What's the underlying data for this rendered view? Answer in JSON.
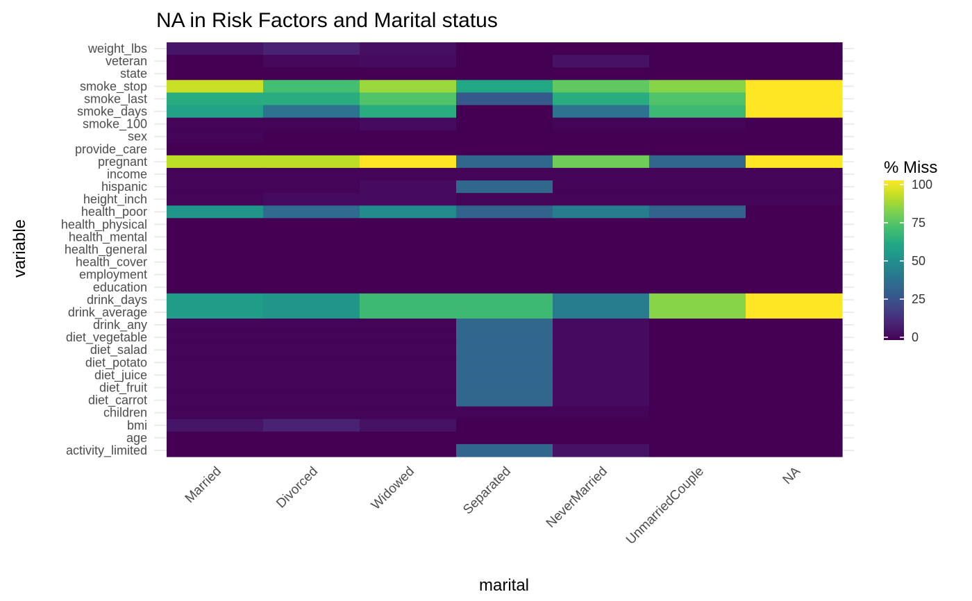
{
  "chart_data": {
    "type": "heatmap",
    "title": "NA in Risk Factors and Marital status",
    "xlabel": "marital",
    "ylabel": "variable",
    "legend_title": "% Miss",
    "legend_ticks": [
      0,
      25,
      50,
      75,
      100
    ],
    "legend_placement": "right",
    "color_scale": "viridis",
    "color_range": [
      0,
      100
    ],
    "x_categories": [
      "Married",
      "Divorced",
      "Widowed",
      "Separated",
      "NeverMarried",
      "UnmarriedCouple",
      "NA"
    ],
    "y_categories": [
      "weight_lbs",
      "veteran",
      "state",
      "smoke_stop",
      "smoke_last",
      "smoke_days",
      "smoke_100",
      "sex",
      "provide_care",
      "pregnant",
      "income",
      "hispanic",
      "height_inch",
      "health_poor",
      "health_physical",
      "health_mental",
      "health_general",
      "health_cover",
      "employment",
      "education",
      "drink_days",
      "drink_average",
      "drink_any",
      "diet_vegetable",
      "diet_salad",
      "diet_potato",
      "diet_juice",
      "diet_fruit",
      "diet_carrot",
      "children",
      "bmi",
      "age",
      "activity_limited"
    ],
    "values": [
      [
        6,
        10,
        4,
        0,
        0,
        0,
        0
      ],
      [
        0,
        2,
        3,
        0,
        5,
        0,
        0
      ],
      [
        0,
        0,
        0,
        0,
        0,
        0,
        0
      ],
      [
        92,
        70,
        85,
        60,
        75,
        82,
        100
      ],
      [
        62,
        62,
        72,
        28,
        62,
        72,
        100
      ],
      [
        58,
        38,
        62,
        0,
        38,
        68,
        100
      ],
      [
        1,
        1,
        3,
        0,
        1,
        1,
        0
      ],
      [
        1,
        0,
        0,
        0,
        0,
        0,
        0
      ],
      [
        0,
        0,
        0,
        0,
        0,
        0,
        0
      ],
      [
        90,
        90,
        100,
        33,
        78,
        33,
        100
      ],
      [
        1,
        1,
        1,
        1,
        1,
        1,
        1
      ],
      [
        1,
        1,
        3,
        33,
        1,
        1,
        1
      ],
      [
        1,
        3,
        3,
        1,
        1,
        1,
        1
      ],
      [
        52,
        35,
        48,
        32,
        42,
        32,
        0
      ],
      [
        0,
        0,
        0,
        0,
        0,
        0,
        0
      ],
      [
        0,
        0,
        0,
        0,
        0,
        0,
        0
      ],
      [
        0,
        0,
        0,
        0,
        0,
        0,
        0
      ],
      [
        0,
        0,
        0,
        0,
        0,
        0,
        0
      ],
      [
        0,
        0,
        0,
        0,
        0,
        0,
        0
      ],
      [
        0,
        0,
        0,
        0,
        0,
        0,
        0
      ],
      [
        55,
        52,
        68,
        68,
        42,
        82,
        100
      ],
      [
        55,
        52,
        68,
        68,
        42,
        82,
        100
      ],
      [
        1,
        1,
        1,
        33,
        3,
        0,
        0
      ],
      [
        1,
        1,
        1,
        33,
        3,
        0,
        0
      ],
      [
        1,
        1,
        1,
        33,
        3,
        0,
        0
      ],
      [
        1,
        1,
        1,
        33,
        3,
        0,
        0
      ],
      [
        1,
        1,
        1,
        33,
        3,
        0,
        0
      ],
      [
        1,
        1,
        1,
        33,
        3,
        0,
        0
      ],
      [
        1,
        1,
        1,
        33,
        3,
        0,
        0
      ],
      [
        1,
        1,
        1,
        1,
        1,
        0,
        0
      ],
      [
        6,
        10,
        5,
        0,
        0,
        0,
        0
      ],
      [
        0,
        0,
        0,
        0,
        0,
        0,
        0
      ],
      [
        0,
        0,
        0,
        33,
        5,
        0,
        0
      ]
    ]
  }
}
